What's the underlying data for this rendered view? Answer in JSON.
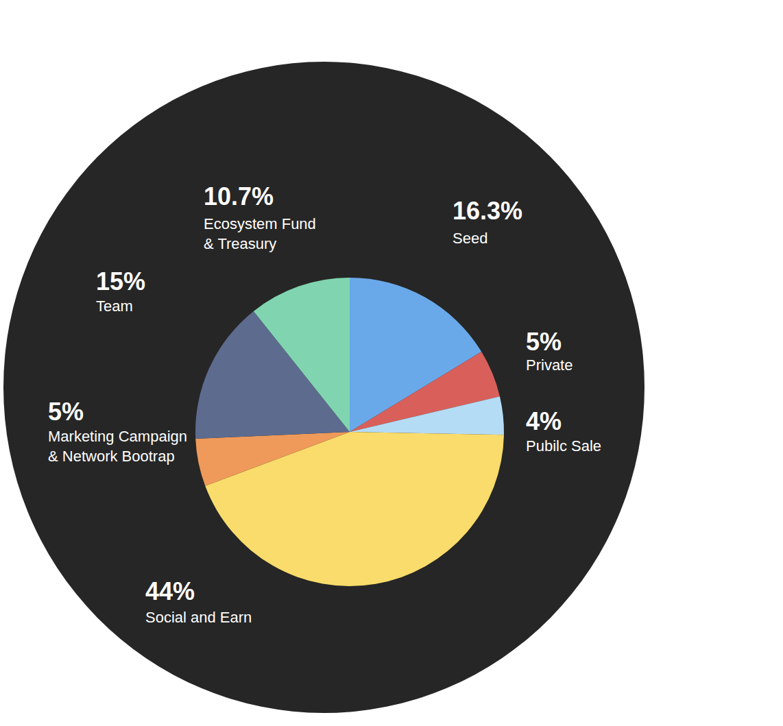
{
  "chart_data": {
    "type": "pie",
    "categories": [
      "Seed",
      "Private",
      "Pubilc Sale",
      "Social and Earn",
      "Marketing Campaign\n& Network Bootrap",
      "Team",
      "Ecosystem Fund\n& Treasury"
    ],
    "values": [
      16.3,
      5,
      4,
      44,
      5,
      15,
      10.7
    ],
    "value_labels": [
      "16.3%",
      "5%",
      "4%",
      "44%",
      "5%",
      "15%",
      "10.7%"
    ],
    "colors": [
      "#6aa9e9",
      "#d9605a",
      "#b5dcf5",
      "#f9dc6b",
      "#ef9a5a",
      "#5d6b8f",
      "#80d5b0"
    ],
    "data_labels": true
  }
}
